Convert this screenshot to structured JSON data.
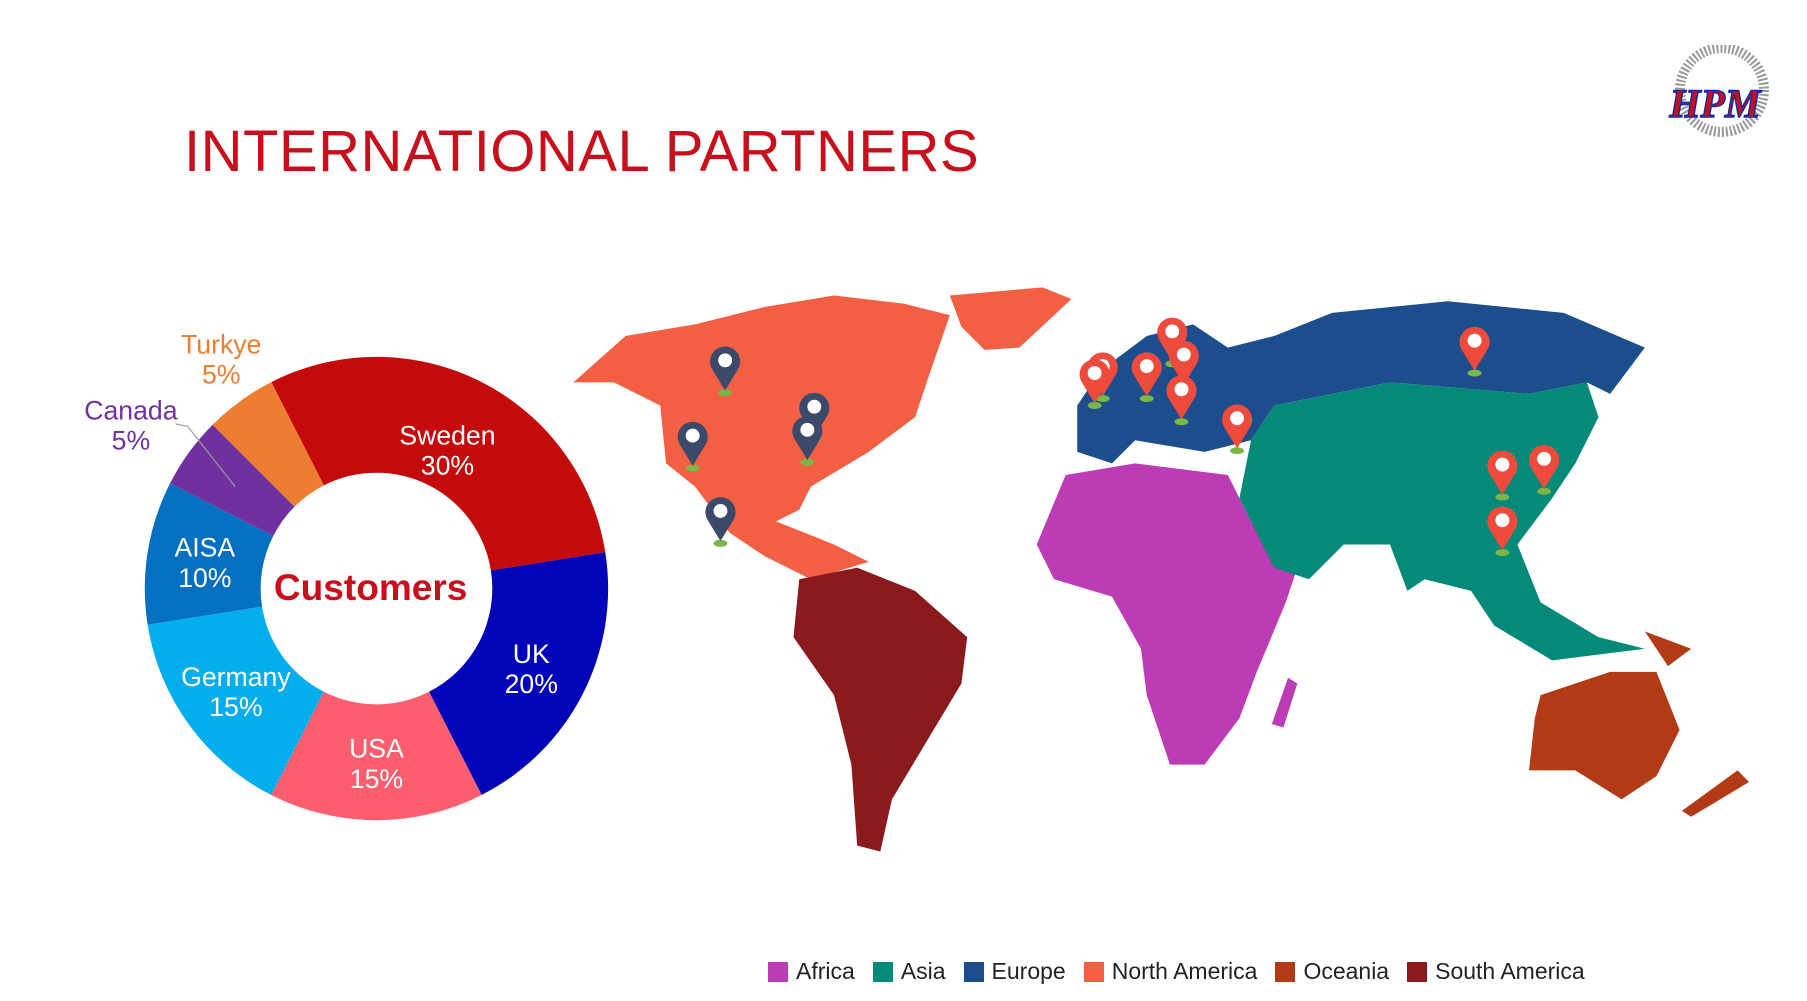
{
  "title": "INTERNATIONAL PARTNERS",
  "logo_text": "HPM",
  "chart_data": {
    "type": "pie",
    "donut": true,
    "center_label": "Customers",
    "start_angle_deg": -27,
    "slices": [
      {
        "label": "Sweden",
        "value": 30,
        "display": "30%",
        "color": "#c40a0a",
        "label_pos": "inside"
      },
      {
        "label": "UK",
        "value": 20,
        "display": "20%",
        "color": "#0303b8",
        "label_pos": "inside"
      },
      {
        "label": "USA",
        "value": 15,
        "display": "15%",
        "color": "#fc5e6e",
        "label_pos": "inside"
      },
      {
        "label": "Germany",
        "value": 15,
        "display": "15%",
        "color": "#04aeed",
        "label_pos": "inside"
      },
      {
        "label": "AISA",
        "value": 10,
        "display": "10%",
        "color": "#0570c0",
        "label_pos": "inside"
      },
      {
        "label": "Canada",
        "value": 5,
        "display": "5%",
        "color": "#7030a0",
        "label_pos": "outside"
      },
      {
        "label": "Turkye",
        "value": 5,
        "display": "5%",
        "color": "#ed7d31",
        "label_pos": "outside"
      }
    ]
  },
  "map": {
    "legend": [
      {
        "label": "Africa",
        "color": "#bb3cb4"
      },
      {
        "label": "Asia",
        "color": "#058a7a"
      },
      {
        "label": "Europe",
        "color": "#1c4d8c"
      },
      {
        "label": "North America",
        "color": "#f35f43"
      },
      {
        "label": "Oceania",
        "color": "#b23a14"
      },
      {
        "label": "South America",
        "color": "#8b1a1e"
      }
    ],
    "pin_colors": {
      "americas": "#3b4a6b",
      "other": "#ee4b3d",
      "base": "#7ab648"
    }
  }
}
